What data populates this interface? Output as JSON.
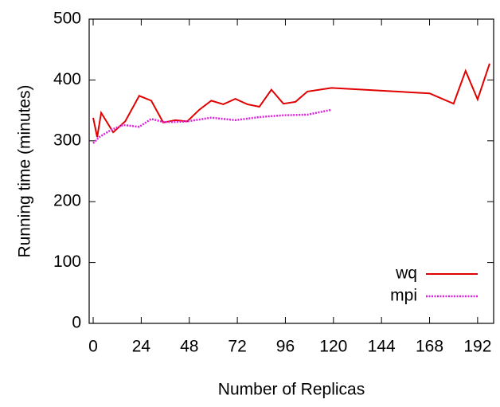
{
  "chart_data": {
    "type": "line",
    "xlabel": "Number of Replicas",
    "ylabel": "Running time (minutes)",
    "xlim": [
      -2,
      200
    ],
    "ylim": [
      0,
      500
    ],
    "xticks": [
      0,
      24,
      48,
      72,
      96,
      120,
      144,
      168,
      192
    ],
    "yticks": [
      0,
      100,
      200,
      300,
      400,
      500
    ],
    "legend": "lower right",
    "series": [
      {
        "name": "wq",
        "color": "#e00000",
        "dash": "solid",
        "x": [
          0,
          2,
          4,
          10,
          16,
          23,
          29,
          35,
          41,
          47,
          53,
          59,
          65,
          71,
          77,
          83,
          89,
          95,
          101,
          107,
          119,
          168,
          180,
          186,
          192,
          198
        ],
        "values": [
          338,
          306,
          346,
          314,
          332,
          374,
          366,
          330,
          334,
          332,
          351,
          366,
          360,
          369,
          360,
          356,
          384,
          361,
          364,
          381,
          387,
          378,
          361,
          415,
          368,
          427
        ]
      },
      {
        "name": "mpi",
        "color": "#e020e0",
        "dash": "dotted",
        "x": [
          0,
          3,
          9,
          15,
          23,
          29,
          35,
          41,
          47,
          59,
          71,
          83,
          95,
          107,
          119
        ],
        "values": [
          296,
          306,
          318,
          326,
          323,
          336,
          331,
          331,
          332,
          338,
          334,
          339,
          342,
          343,
          351
        ]
      }
    ]
  }
}
